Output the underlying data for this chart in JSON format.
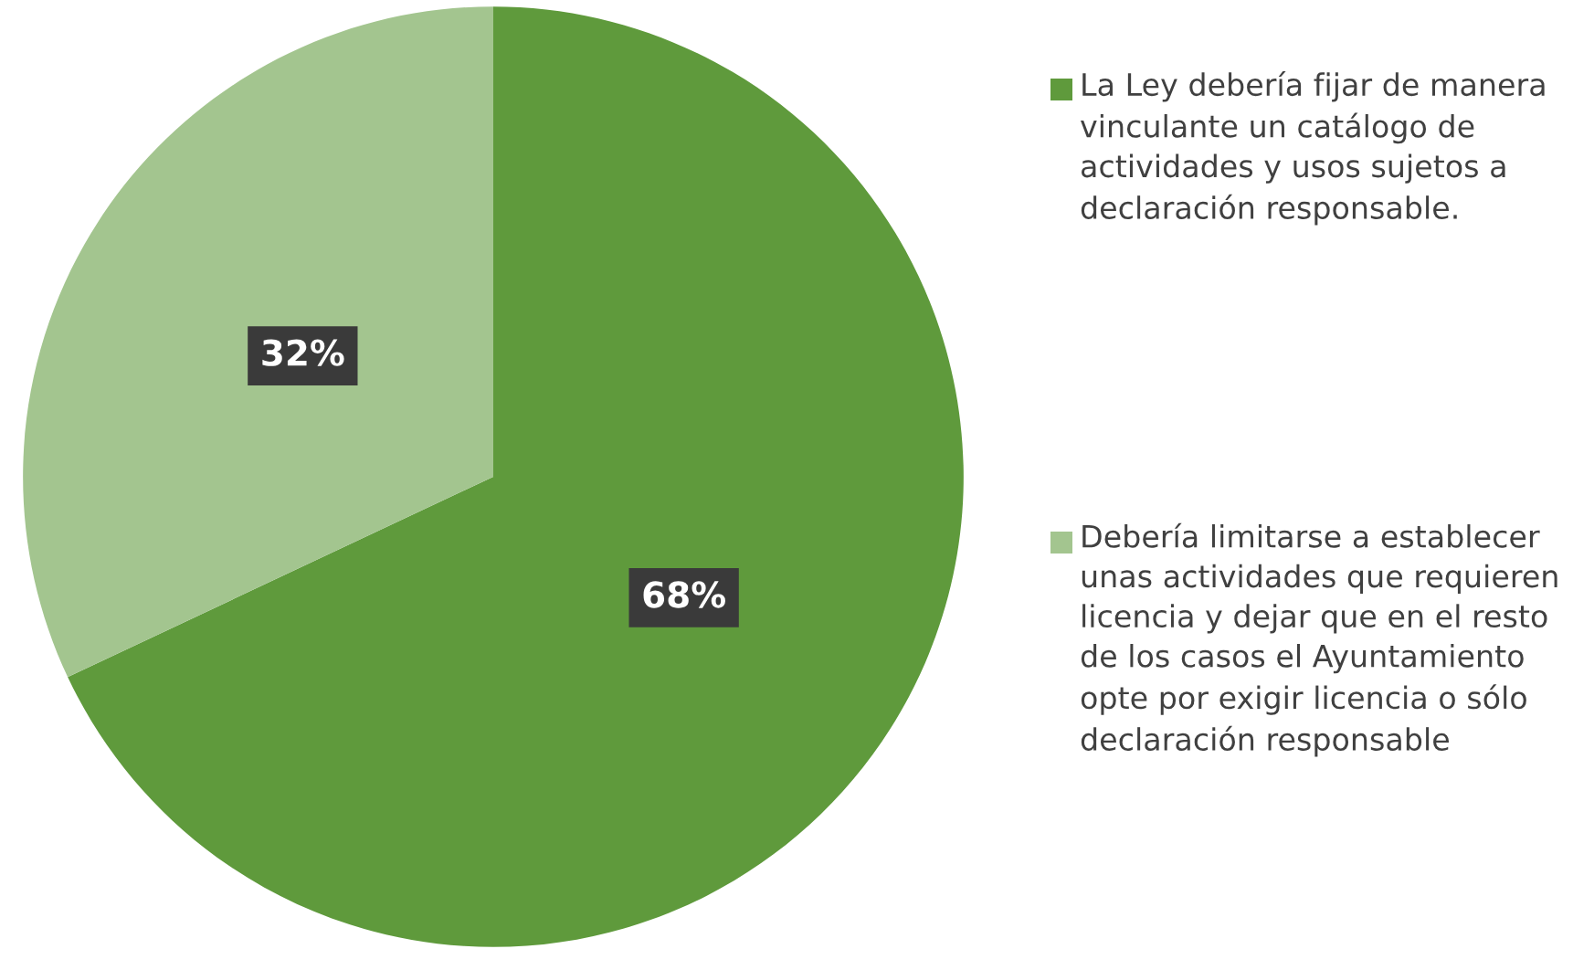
{
  "chart_data": {
    "type": "pie",
    "categories": [
      "La Ley debería fijar de manera vinculante un catálogo de actividades y usos sujetos a declaración responsable.",
      "Debería limitarse a establecer unas actividades que requieren licencia y dejar que en el resto de los casos el Ayuntamiento opte por exigir licencia o sólo declaración responsable"
    ],
    "values": [
      68,
      32
    ],
    "colors": [
      "#5f9a3c",
      "#a3c58f"
    ],
    "value_labels": [
      "68%",
      "32%"
    ],
    "legend": "right"
  }
}
